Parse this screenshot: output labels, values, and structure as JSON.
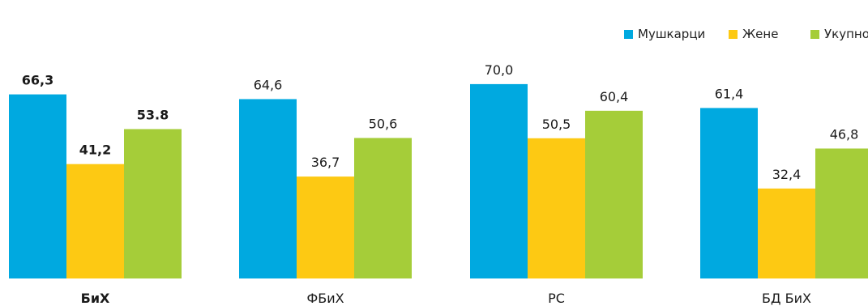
{
  "chart_data": {
    "type": "bar",
    "title": "",
    "xlabel": "",
    "ylabel": "",
    "ylim": [
      0,
      78
    ],
    "grid": false,
    "legend_position": "top-right",
    "categories": [
      "БиХ",
      "ФБиХ",
      "РС",
      "БД БиХ"
    ],
    "bold_categories": [
      "БиХ"
    ],
    "series": [
      {
        "name": "Мушкарци",
        "color": "#00a9e0",
        "values": [
          66.3,
          64.6,
          70.0,
          61.4
        ],
        "labels": [
          "66,3",
          "64,6",
          "70,0",
          "61,4"
        ]
      },
      {
        "name": "Жене",
        "color": "#fdc913",
        "values": [
          41.2,
          36.7,
          50.5,
          32.4
        ],
        "labels": [
          "41,2",
          "36,7",
          "50,5",
          "32,4"
        ]
      },
      {
        "name": "Укупно",
        "color": "#a5cd39",
        "values": [
          53.8,
          50.6,
          60.4,
          46.8
        ],
        "labels": [
          "53.8",
          "50,6",
          "60,4",
          "46,8"
        ]
      }
    ]
  }
}
